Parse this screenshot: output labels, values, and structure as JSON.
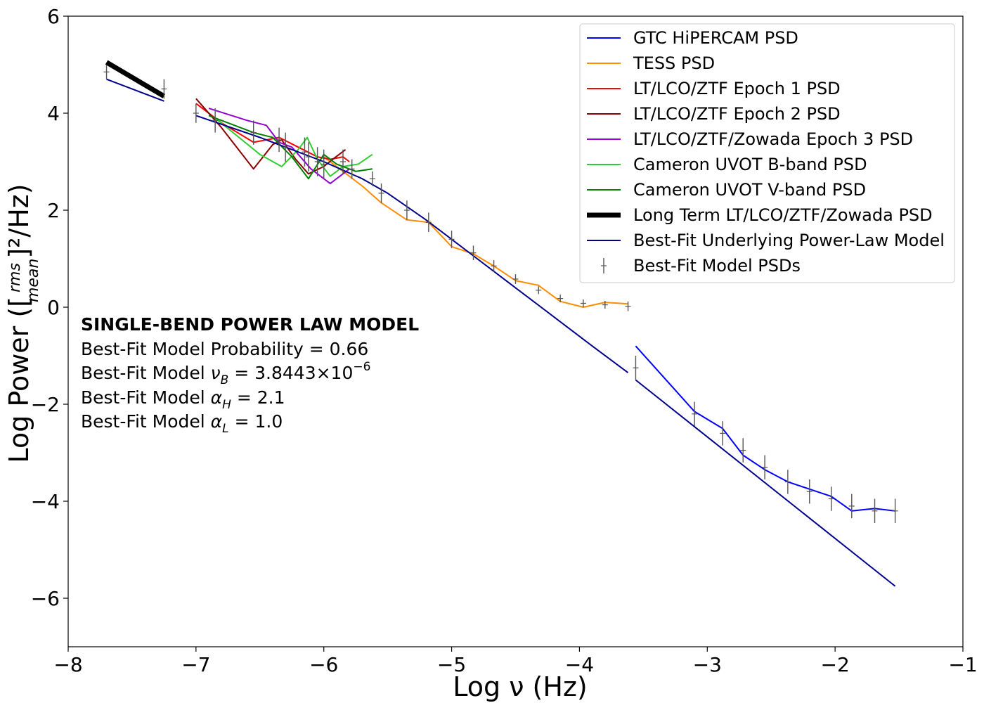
{
  "chart_data": {
    "type": "line",
    "xlabel": "Log ν (Hz)",
    "ylabel_prefix": "Log Power ([",
    "ylabel_num": "rms",
    "ylabel_den": "mean",
    "ylabel_suffix": "]²/Hz)",
    "xlim": [
      -8,
      -1
    ],
    "ylim": [
      -7,
      6
    ],
    "xticks": [
      -8,
      -7,
      -6,
      -5,
      -4,
      -3,
      -2,
      -1
    ],
    "yticks": [
      -6,
      -4,
      -2,
      0,
      2,
      4,
      6
    ],
    "series": [
      {
        "name": "GTC HiPERCAM PSD",
        "color": "#0000ff",
        "width": 2,
        "x": [
          -3.56,
          -3.1,
          -2.88,
          -2.72,
          -2.55,
          -2.37,
          -2.2,
          -2.03,
          -1.87,
          -1.69,
          -1.53
        ],
        "y": [
          -0.8,
          -2.15,
          -2.5,
          -3.05,
          -3.35,
          -3.6,
          -3.75,
          -3.9,
          -4.2,
          -4.15,
          -4.2
        ]
      },
      {
        "name": "TESS PSD",
        "color": "#ff8c00",
        "width": 2,
        "x": [
          -6.0,
          -5.7,
          -5.55,
          -5.35,
          -5.18,
          -5.0,
          -4.83,
          -4.67,
          -4.5,
          -4.32,
          -4.15,
          -3.97,
          -3.8,
          -3.62
        ],
        "y": [
          3.1,
          2.5,
          2.15,
          1.8,
          1.75,
          1.25,
          1.1,
          0.85,
          0.55,
          0.45,
          0.12,
          0.0,
          0.1,
          0.07
        ]
      },
      {
        "name": "LT/LCO/ZTF Epoch 1 PSD",
        "color": "#ff0000",
        "width": 2,
        "x": [
          -7.0,
          -6.8,
          -6.55,
          -6.35,
          -6.2,
          -6.05,
          -5.95,
          -5.85,
          -5.8
        ],
        "y": [
          4.2,
          3.8,
          3.4,
          3.5,
          3.3,
          3.1,
          3.05,
          3.1,
          3.0
        ]
      },
      {
        "name": "LT/LCO/ZTF Epoch 2 PSD",
        "color": "#8b0000",
        "width": 2,
        "x": [
          -7.0,
          -6.8,
          -6.55,
          -6.4,
          -6.33,
          -6.22,
          -6.12,
          -6.0,
          -5.93,
          -5.83
        ],
        "y": [
          4.3,
          3.7,
          2.85,
          3.35,
          3.45,
          3.05,
          2.75,
          2.9,
          3.05,
          3.25
        ]
      },
      {
        "name": "LT/LCO/ZTF/Zowada Epoch 3 PSD",
        "color": "#9400d3",
        "width": 2,
        "x": [
          -6.9,
          -6.6,
          -6.45,
          -6.35,
          -6.25,
          -6.1,
          -5.95,
          -5.8
        ],
        "y": [
          4.1,
          3.85,
          3.75,
          3.4,
          3.3,
          2.85,
          2.55,
          2.85
        ]
      },
      {
        "name": "Cameron UVOT B-band PSD",
        "color": "#32cd32",
        "width": 2,
        "x": [
          -6.85,
          -6.5,
          -6.33,
          -6.2,
          -6.13,
          -6.05,
          -5.95,
          -5.85,
          -5.73,
          -5.62
        ],
        "y": [
          3.9,
          3.15,
          2.9,
          3.25,
          3.5,
          3.05,
          2.7,
          2.9,
          2.95,
          3.15
        ]
      },
      {
        "name": "Cameron UVOT V-band PSD",
        "color": "#008000",
        "width": 2,
        "x": [
          -6.9,
          -6.55,
          -6.4,
          -6.25,
          -6.12,
          -6.0,
          -5.9,
          -5.75,
          -5.62
        ],
        "y": [
          3.95,
          3.6,
          3.5,
          3.1,
          2.65,
          3.15,
          2.95,
          2.8,
          2.85
        ]
      },
      {
        "name": "Long Term LT/LCO/ZTF/Zowada PSD",
        "color": "#000000",
        "width": 7,
        "x": [
          -7.7,
          -7.25
        ],
        "y": [
          5.05,
          4.35
        ]
      },
      {
        "name": "Best-Fit Underlying Power-Law Model",
        "color": "#00008b",
        "width": 2,
        "segments": [
          {
            "x": [
              -7.7,
              -7.25
            ],
            "y": [
              4.7,
              4.25
            ]
          },
          {
            "x": [
              -7.0,
              -6.5,
              -6.0,
              -5.7,
              -5.5,
              -5.2,
              -5.0,
              -4.8,
              -4.5,
              -4.2,
              -3.9,
              -3.62
            ],
            "y": [
              3.95,
              3.5,
              3.0,
              2.65,
              2.35,
              1.8,
              1.4,
              1.0,
              0.4,
              -0.2,
              -0.8,
              -1.35
            ]
          },
          {
            "x": [
              -3.56,
              -1.53
            ],
            "y": [
              -1.5,
              -5.75
            ]
          }
        ]
      }
    ],
    "model_points": {
      "name": "Best-Fit Model PSDs",
      "color": "#555555",
      "x": [
        -7.7,
        -7.25,
        -7.0,
        -6.85,
        -6.55,
        -6.35,
        -6.3,
        -6.15,
        -6.12,
        -6.05,
        -6.0,
        -5.85,
        -5.78,
        -5.62,
        -5.55,
        -5.35,
        -5.18,
        -5.0,
        -4.83,
        -4.67,
        -4.5,
        -4.32,
        -4.15,
        -3.97,
        -3.8,
        -3.62,
        -3.56,
        -3.1,
        -2.88,
        -2.72,
        -2.55,
        -2.37,
        -2.2,
        -2.03,
        -1.87,
        -1.69,
        -1.53
      ],
      "y": [
        4.85,
        4.5,
        4.0,
        3.85,
        3.6,
        3.45,
        3.3,
        3.2,
        3.1,
        3.0,
        2.95,
        3.0,
        2.85,
        2.65,
        2.35,
        2.0,
        1.75,
        1.4,
        1.12,
        0.85,
        0.58,
        0.35,
        0.18,
        0.08,
        0.05,
        0.02,
        -1.25,
        -2.2,
        -2.6,
        -2.95,
        -3.3,
        -3.6,
        -3.8,
        -3.95,
        -4.1,
        -4.2,
        -4.2
      ],
      "err": [
        0.15,
        0.2,
        0.2,
        0.25,
        0.25,
        0.25,
        0.3,
        0.3,
        0.3,
        0.3,
        0.3,
        0.25,
        0.2,
        0.15,
        0.2,
        0.2,
        0.2,
        0.18,
        0.15,
        0.12,
        0.1,
        0.08,
        0.08,
        0.08,
        0.08,
        0.1,
        0.25,
        0.25,
        0.25,
        0.25,
        0.25,
        0.25,
        0.25,
        0.25,
        0.25,
        0.25,
        0.25
      ]
    },
    "legend_position": "top-right",
    "annotation": {
      "title": "SINGLE-BEND POWER LAW MODEL",
      "probability": "Best-Fit Model Probability = 0.66",
      "nu_b_prefix": "Best-Fit Model ",
      "nu_b_symbol": "ν",
      "nu_b_sub": "B",
      "nu_b_value": " = 3.8443×10",
      "nu_b_exp": "−6",
      "alpha_h_prefix": "Best-Fit Model ",
      "alpha_h_symbol": "α",
      "alpha_h_sub": "H",
      "alpha_h_value": " = 2.1",
      "alpha_l_prefix": "Best-Fit Model ",
      "alpha_l_symbol": "α",
      "alpha_l_sub": "L",
      "alpha_l_value": " = 1.0"
    }
  }
}
